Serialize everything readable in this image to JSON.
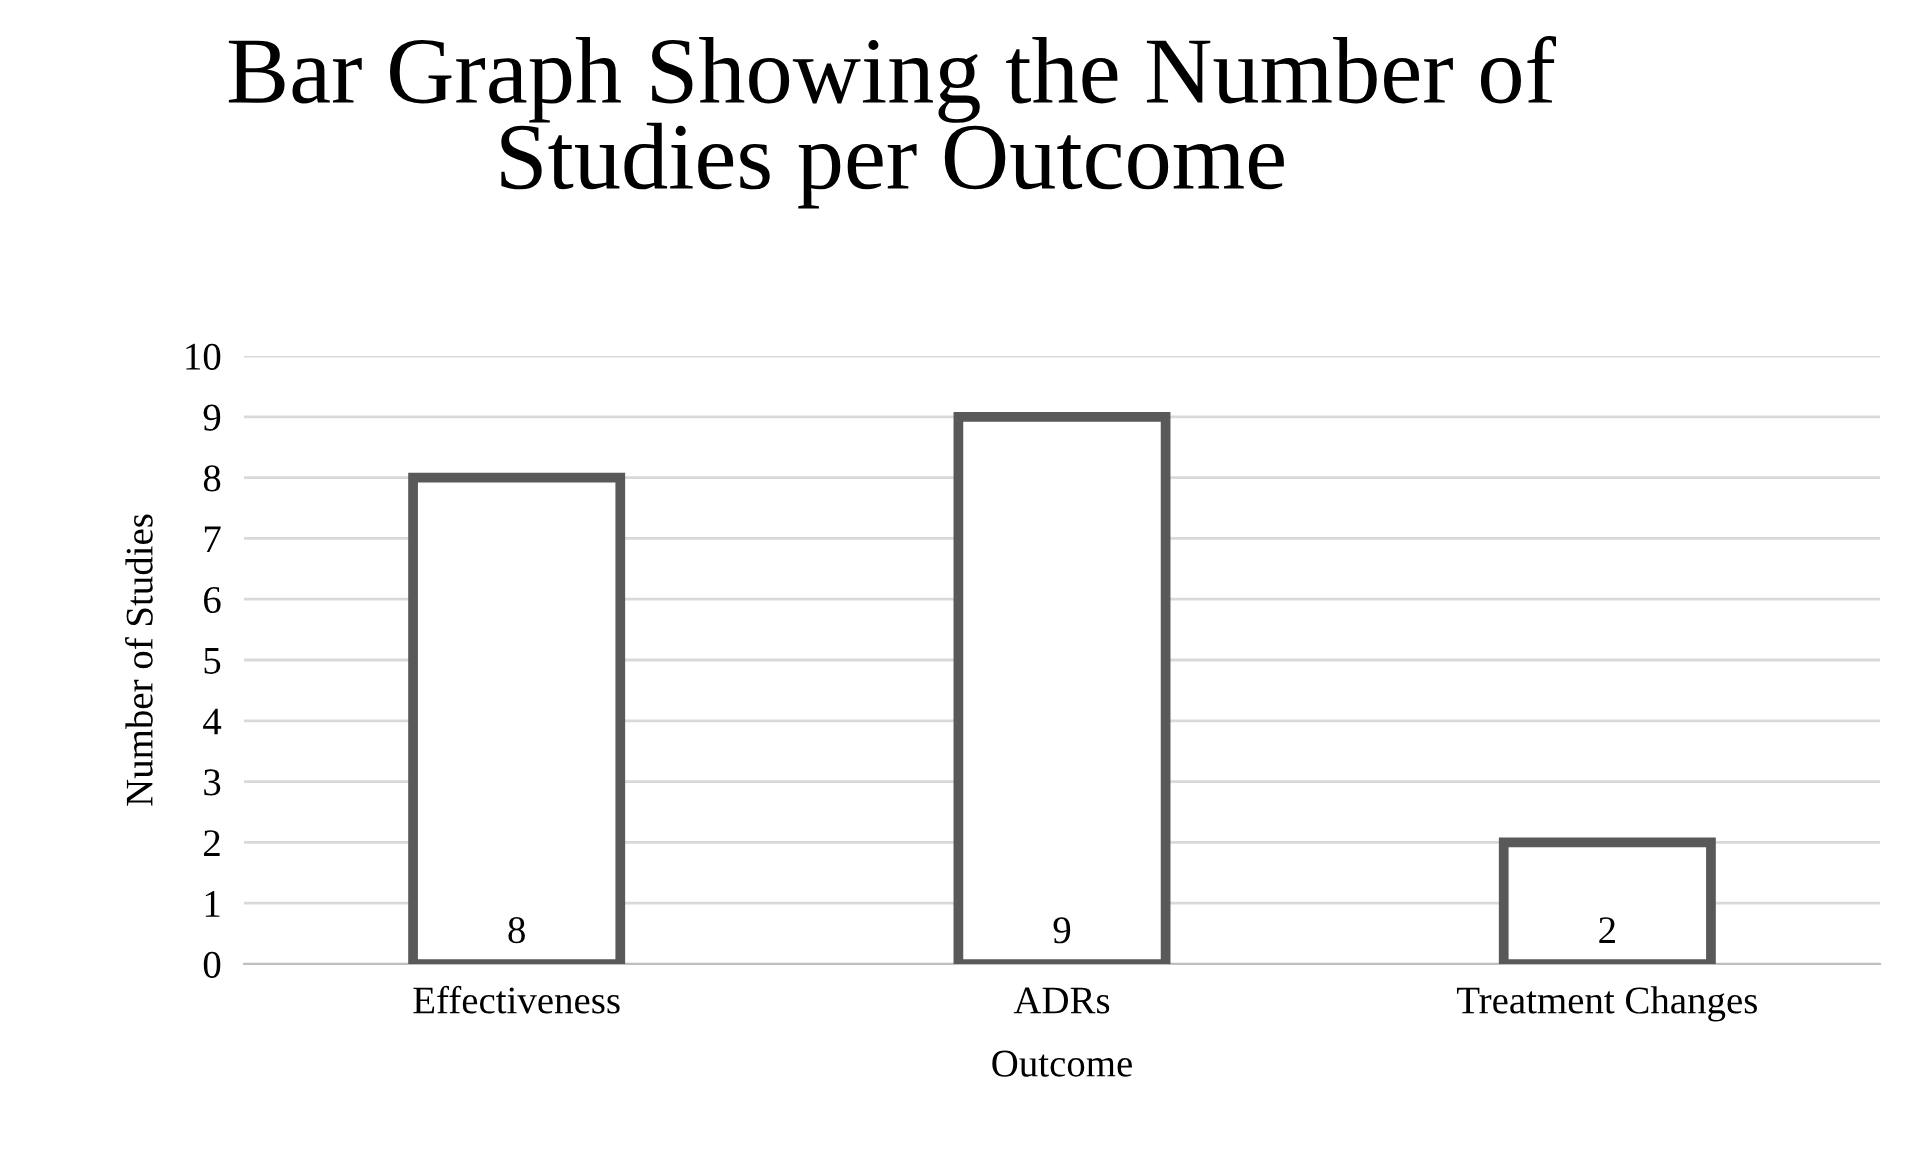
{
  "chart_data": {
    "type": "bar",
    "title": "Bar Graph Showing the Number of Studies per Outcome",
    "xlabel": "Outcome",
    "ylabel": "Number of Studies",
    "categories": [
      "Effectiveness",
      "ADRs",
      "Treatment Changes"
    ],
    "series": [
      {
        "color": "#595959",
        "values": [
          8,
          9,
          2
        ]
      }
    ],
    "ylim": [
      0,
      10
    ],
    "yticks": [
      0,
      1,
      2,
      3,
      4,
      5,
      6,
      7,
      8,
      9,
      10
    ],
    "grid": "y",
    "data_labels": true
  }
}
